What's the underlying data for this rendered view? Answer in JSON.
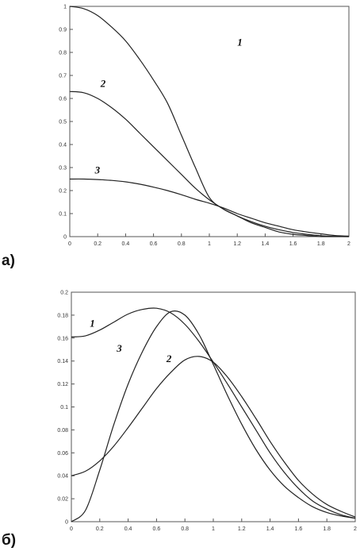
{
  "chart_data": [
    {
      "type": "line",
      "panel_label": "а)",
      "xlim": [
        0,
        2
      ],
      "ylim": [
        0,
        1
      ],
      "xticks": [
        0,
        0.2,
        0.4,
        0.6,
        0.8,
        1,
        1.2,
        1.4,
        1.6,
        1.8,
        2
      ],
      "xtick_labels": [
        "0",
        "0.2",
        "0.4",
        "0.6",
        "0.8",
        "1",
        "1.2",
        "1.4",
        "1.6",
        "1.8",
        "2"
      ],
      "yticks": [
        0,
        0.1,
        0.2,
        0.3,
        0.4,
        0.5,
        0.6,
        0.7,
        0.8,
        0.9,
        1
      ],
      "ytick_labels": [
        "0",
        "0.1",
        "0.2",
        "0.3",
        "0.4",
        "0.5",
        "0.6",
        "0.7",
        "0.8",
        "0.9",
        "1"
      ],
      "grid": false,
      "series": [
        {
          "name": "1",
          "label_at": [
            1.2,
            0.83
          ],
          "x": [
            0,
            0.1,
            0.2,
            0.3,
            0.4,
            0.5,
            0.6,
            0.7,
            0.8,
            0.9,
            1.0,
            1.1,
            1.2,
            1.3,
            1.4,
            1.5,
            1.6,
            1.7,
            1.8,
            1.9,
            2.0
          ],
          "y": [
            1.0,
            0.99,
            0.96,
            0.91,
            0.85,
            0.77,
            0.68,
            0.58,
            0.44,
            0.3,
            0.17,
            0.12,
            0.09,
            0.06,
            0.04,
            0.02,
            0.01,
            0.005,
            0.0,
            0.0,
            0.0
          ]
        },
        {
          "name": "2",
          "label_at": [
            0.22,
            0.65
          ],
          "x": [
            0,
            0.1,
            0.2,
            0.3,
            0.4,
            0.5,
            0.6,
            0.7,
            0.8,
            0.9,
            1.0,
            1.1,
            1.2,
            1.3,
            1.4,
            1.5,
            1.6,
            1.7,
            1.8,
            1.9,
            2.0
          ],
          "y": [
            0.63,
            0.625,
            0.6,
            0.56,
            0.51,
            0.45,
            0.39,
            0.33,
            0.27,
            0.21,
            0.16,
            0.12,
            0.09,
            0.065,
            0.045,
            0.03,
            0.018,
            0.01,
            0.004,
            0.001,
            0.0
          ]
        },
        {
          "name": "3",
          "label_at": [
            0.18,
            0.275
          ],
          "x": [
            0,
            0.1,
            0.2,
            0.3,
            0.4,
            0.5,
            0.6,
            0.7,
            0.8,
            0.9,
            1.0,
            1.1,
            1.2,
            1.3,
            1.4,
            1.5,
            1.6,
            1.7,
            1.8,
            1.9,
            2.0
          ],
          "y": [
            0.25,
            0.25,
            0.248,
            0.244,
            0.238,
            0.228,
            0.215,
            0.2,
            0.182,
            0.162,
            0.145,
            0.125,
            0.1,
            0.08,
            0.06,
            0.045,
            0.03,
            0.02,
            0.012,
            0.005,
            0.002
          ]
        }
      ]
    },
    {
      "type": "line",
      "panel_label": "б)",
      "xlim": [
        0,
        2
      ],
      "ylim": [
        0,
        0.2
      ],
      "xticks": [
        0,
        0.2,
        0.4,
        0.6,
        0.8,
        1,
        1.2,
        1.4,
        1.6,
        1.8,
        2
      ],
      "xtick_labels": [
        "0",
        "0.2",
        "0.4",
        "0.6",
        "0.8",
        "1",
        "1.2",
        "1.4",
        "1.6",
        "1.8",
        "2"
      ],
      "yticks": [
        0,
        0.02,
        0.04,
        0.06,
        0.08,
        0.1,
        0.12,
        0.14,
        0.16,
        0.18,
        0.2
      ],
      "ytick_labels": [
        "0",
        "0.02",
        "0.04",
        "0.06",
        "0.08",
        "0.1",
        "0.12",
        "0.14",
        "0.16",
        "0.18",
        "0.2"
      ],
      "grid": false,
      "series": [
        {
          "name": "1",
          "label_at": [
            0.13,
            0.17
          ],
          "x": [
            0,
            0.1,
            0.2,
            0.3,
            0.4,
            0.5,
            0.6,
            0.7,
            0.8,
            0.9,
            1.0,
            1.1,
            1.2,
            1.3,
            1.4,
            1.5,
            1.6,
            1.7,
            1.8,
            1.9,
            2.0
          ],
          "y": [
            0.161,
            0.162,
            0.167,
            0.174,
            0.181,
            0.185,
            0.186,
            0.182,
            0.172,
            0.157,
            0.139,
            0.12,
            0.1,
            0.08,
            0.06,
            0.043,
            0.029,
            0.018,
            0.011,
            0.006,
            0.003
          ]
        },
        {
          "name": "2",
          "label_at": [
            0.67,
            0.139
          ],
          "x": [
            0,
            0.1,
            0.2,
            0.3,
            0.4,
            0.5,
            0.6,
            0.7,
            0.8,
            0.9,
            1.0,
            1.1,
            1.2,
            1.3,
            1.4,
            1.5,
            1.6,
            1.7,
            1.8,
            1.9,
            2.0
          ],
          "y": [
            0.04,
            0.044,
            0.053,
            0.066,
            0.082,
            0.099,
            0.116,
            0.13,
            0.141,
            0.144,
            0.139,
            0.126,
            0.109,
            0.09,
            0.07,
            0.052,
            0.036,
            0.024,
            0.015,
            0.009,
            0.004
          ]
        },
        {
          "name": "3",
          "label_at": [
            0.32,
            0.148
          ],
          "x": [
            0,
            0.1,
            0.2,
            0.3,
            0.4,
            0.5,
            0.6,
            0.7,
            0.8,
            0.9,
            1.0,
            1.1,
            1.2,
            1.3,
            1.4,
            1.5,
            1.6,
            1.7,
            1.8,
            1.9,
            2.0
          ],
          "y": [
            0.0,
            0.01,
            0.045,
            0.085,
            0.12,
            0.148,
            0.17,
            0.183,
            0.18,
            0.163,
            0.137,
            0.11,
            0.085,
            0.063,
            0.045,
            0.031,
            0.021,
            0.013,
            0.008,
            0.005,
            0.003
          ]
        }
      ]
    }
  ]
}
